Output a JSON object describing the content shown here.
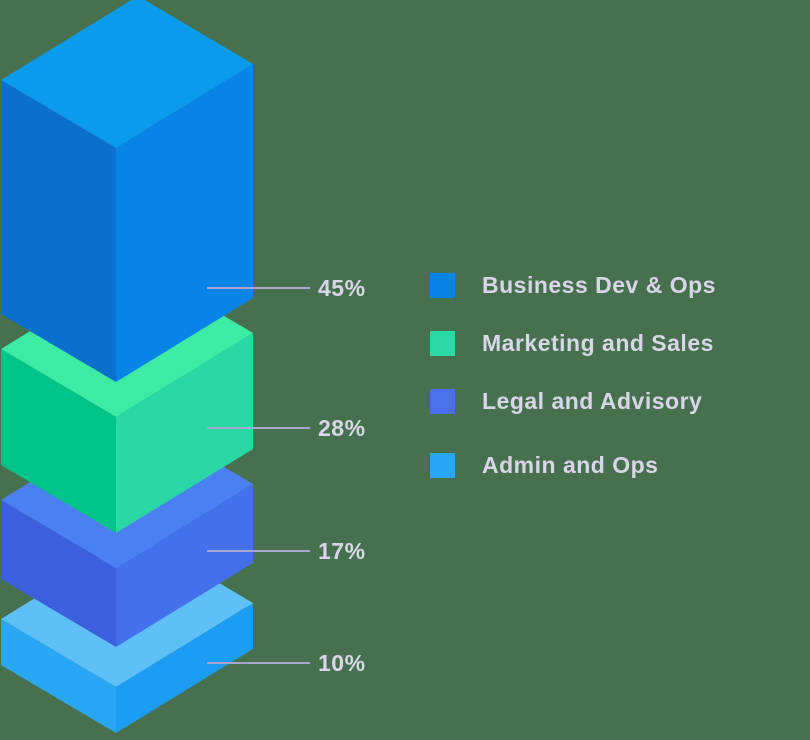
{
  "chart_data": {
    "type": "bar",
    "variant": "isometric-3d-stacked-pyramid",
    "title": "",
    "unit": "%",
    "categories": [
      "Business Dev & Ops",
      "Marketing and Sales",
      "Legal and Advisory",
      "Admin and Ops"
    ],
    "values": [
      45,
      28,
      17,
      10
    ],
    "series": [
      {
        "name": "Business Dev & Ops",
        "value": 45,
        "label": "45%",
        "face_top": "#0a9bec",
        "face_left": "#0b70cc",
        "face_right": "#0884e8"
      },
      {
        "name": "Marketing and Sales",
        "value": 28,
        "label": "28%",
        "face_top": "#3deba4",
        "face_left": "#00c389",
        "face_right": "#2ad8a6"
      },
      {
        "name": "Legal and Advisory",
        "value": 17,
        "label": "17%",
        "face_top": "#4a80f2",
        "face_left": "#3c5fde",
        "face_right": "#4470ec"
      },
      {
        "name": "Admin and Ops",
        "value": 10,
        "label": "10%",
        "face_top": "#5fc0f8",
        "face_left": "#2aa7f4",
        "face_right": "#1c9df3"
      }
    ],
    "legend_position": "right",
    "grid": false,
    "background_color": "#47714e",
    "text_color": "#d8d6e8",
    "line_color": "#a8a5ce"
  },
  "legend": {
    "items": [
      {
        "label": "Business Dev & Ops",
        "color": "#0884e8"
      },
      {
        "label": "Marketing and Sales",
        "color": "#2bd9a4"
      },
      {
        "label": "Legal and Advisory",
        "color": "#4a70ec"
      },
      {
        "label": "Admin and Ops",
        "color": "#29a6f5"
      }
    ]
  }
}
